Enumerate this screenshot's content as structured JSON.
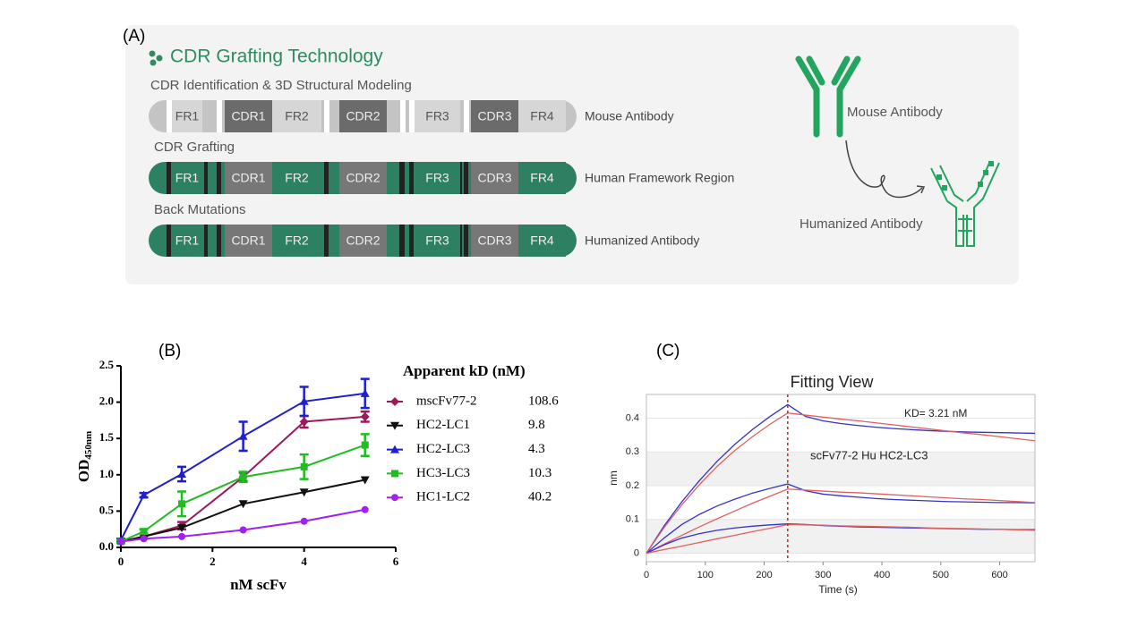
{
  "diagram": {
    "label": "(A)",
    "title": "CDR Grafting Technology",
    "segments": [
      "FR1",
      "CDR1",
      "FR2",
      "CDR2",
      "FR3",
      "CDR3",
      "FR4"
    ],
    "rows": [
      {
        "heading": "CDR Identification & 3D Structural Modeling",
        "caption": "Mouse Antibody"
      },
      {
        "heading": "CDR Grafting",
        "caption": "Human Framework Region"
      },
      {
        "heading": "Back Mutations",
        "caption": "Humanized Antibody"
      }
    ],
    "icon_labels": [
      "Mouse Antibody",
      "Humanized Antibody"
    ]
  },
  "chart_data": [
    {
      "type": "line",
      "panel_label": "(B)",
      "xlabel": "nM scFv",
      "ylabel": "OD",
      "ylabel_sub": "450nm",
      "legend_title": "Apparent kD (nM)",
      "x": [
        0,
        0.5,
        1.33,
        2.67,
        4,
        5.33
      ],
      "xlim": [
        0,
        6
      ],
      "xticks": [
        0,
        2,
        4,
        6
      ],
      "ylim": [
        0,
        2.5
      ],
      "yticks": [
        {
          "value": 0,
          "label": "0.0"
        },
        0.5,
        {
          "value": 1,
          "label": "1.0"
        },
        1.5,
        {
          "value": 2,
          "label": "2.0"
        },
        2.5
      ],
      "series": [
        {
          "name": "mscFv77-2",
          "kd": 108.6,
          "color": "#9b1b5a",
          "marker": "diamond",
          "values": [
            0.08,
            0.15,
            0.3,
            0.97,
            1.73,
            1.8
          ],
          "errors": [
            0.02,
            0.03,
            0.05,
            0.06,
            0.08,
            0.07
          ]
        },
        {
          "name": "HC2-LC1",
          "kd": 9.8,
          "color": "#111111",
          "marker": "triangle-down",
          "values": [
            0.08,
            0.15,
            0.27,
            0.6,
            0.76,
            0.93
          ]
        },
        {
          "name": "HC2-LC3",
          "kd": 4.3,
          "color": "#1f1fd0",
          "marker": "triangle-up",
          "values": [
            0.1,
            0.72,
            1.01,
            1.53,
            2.01,
            2.12
          ],
          "errors": [
            0.02,
            0.03,
            0.1,
            0.2,
            0.2,
            0.2
          ]
        },
        {
          "name": "HC3-LC3",
          "kd": 10.3,
          "color": "#22bb22",
          "marker": "square",
          "values": [
            0.08,
            0.22,
            0.6,
            0.97,
            1.11,
            1.41
          ],
          "errors": [
            0.02,
            0.03,
            0.17,
            0.07,
            0.17,
            0.15
          ]
        },
        {
          "name": "HC1-LC2",
          "kd": 40.2,
          "color": "#a020f0",
          "marker": "circle",
          "values": [
            0.08,
            0.12,
            0.15,
            0.24,
            0.36,
            0.52
          ]
        }
      ]
    },
    {
      "type": "line",
      "panel_label": "(C)",
      "title": "Fitting View",
      "xlabel": "Time (s)",
      "ylabel": "nm",
      "annotations": [
        "KD= 3.21 nM",
        "scFv77-2 Hu HC2-LC3"
      ],
      "vline": 240,
      "x": [
        0,
        30,
        60,
        90,
        120,
        150,
        180,
        210,
        240,
        270,
        300,
        330,
        360,
        390,
        420,
        450,
        480,
        510,
        540,
        570,
        600,
        630,
        660
      ],
      "xlim": [
        0,
        660
      ],
      "xticks": [
        0,
        100,
        200,
        300,
        400,
        500,
        600
      ],
      "ylim": [
        -0.025,
        0.47
      ],
      "yticks": [
        0,
        0.1,
        0.2,
        0.3,
        0.4
      ],
      "series": [
        {
          "color": "#3333cc",
          "values": [
            0,
            0.081,
            0.152,
            0.215,
            0.272,
            0.322,
            0.366,
            0.405,
            0.44,
            0.405,
            0.392,
            0.384,
            0.378,
            0.373,
            0.369,
            0.366,
            0.363,
            0.361,
            0.359,
            0.358,
            0.357,
            0.356,
            0.355
          ]
        },
        {
          "color": "#e06060",
          "values": [
            0,
            0.076,
            0.143,
            0.203,
            0.257,
            0.304,
            0.345,
            0.382,
            0.415,
            0.409,
            0.403,
            0.397,
            0.392,
            0.386,
            0.38,
            0.374,
            0.368,
            0.362,
            0.356,
            0.351,
            0.345,
            0.339,
            0.333
          ]
        },
        {
          "color": "#3333cc",
          "values": [
            0,
            0.045,
            0.085,
            0.115,
            0.14,
            0.16,
            0.178,
            0.192,
            0.205,
            0.185,
            0.175,
            0.17,
            0.166,
            0.162,
            0.159,
            0.157,
            0.155,
            0.153,
            0.152,
            0.151,
            0.15,
            0.15,
            0.149
          ]
        },
        {
          "color": "#e06060",
          "values": [
            0,
            0.027,
            0.053,
            0.078,
            0.102,
            0.125,
            0.148,
            0.169,
            0.19,
            0.187,
            0.184,
            0.181,
            0.179,
            0.176,
            0.173,
            0.17,
            0.167,
            0.164,
            0.161,
            0.159,
            0.156,
            0.153,
            0.15
          ]
        },
        {
          "color": "#3333cc",
          "values": [
            0,
            0.025,
            0.045,
            0.058,
            0.068,
            0.075,
            0.08,
            0.084,
            0.087,
            0.085,
            0.082,
            0.08,
            0.078,
            0.077,
            0.076,
            0.075,
            0.074,
            0.073,
            0.072,
            0.071,
            0.071,
            0.07,
            0.07
          ]
        },
        {
          "color": "#e06060",
          "values": [
            0,
            0.011,
            0.021,
            0.032,
            0.043,
            0.053,
            0.064,
            0.074,
            0.085,
            0.084,
            0.083,
            0.081,
            0.08,
            0.079,
            0.078,
            0.077,
            0.075,
            0.074,
            0.073,
            0.072,
            0.071,
            0.069,
            0.068
          ]
        }
      ]
    }
  ]
}
